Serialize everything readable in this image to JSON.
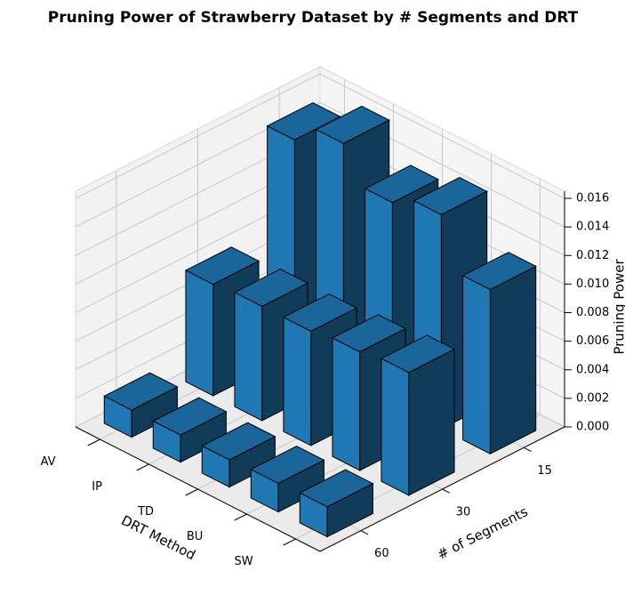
{
  "chart_data": {
    "type": "bar3d",
    "title": "Pruning Power of Strawberry Dataset by # Segments and DRT",
    "x_label": "DRT Method",
    "y_label": "# of Segments",
    "z_label": "Pruning Power",
    "categories": [
      "AV",
      "IP",
      "TD",
      "BU",
      "SW"
    ],
    "y_categories": [
      "60",
      "30",
      "15"
    ],
    "values": [
      [
        0.0019,
        0.0019,
        0.0019,
        0.002,
        0.0021
      ],
      [
        0.0078,
        0.008,
        0.008,
        0.0083,
        0.0086
      ],
      [
        0.015,
        0.0165,
        0.0141,
        0.015,
        0.0115
      ]
    ],
    "color": "#1f77b4",
    "zlim": [
      0,
      0.0165
    ],
    "zticks": [
      {
        "value": 0,
        "label": "0.000"
      },
      0.002,
      0.004,
      0.006,
      0.008,
      {
        "value": 0.01,
        "label": "0.010"
      },
      0.012,
      0.014,
      0.016
    ],
    "grid": true
  }
}
